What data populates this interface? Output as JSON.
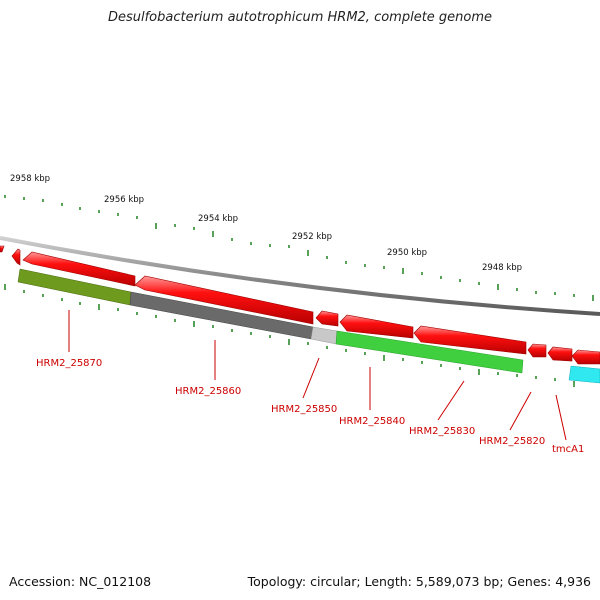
{
  "title": "Desulfobacterium autotrophicum HRM2, complete genome",
  "footer": {
    "accession": "Accession: NC_012108",
    "summary": "Topology: circular; Length: 5,589,073 bp; Genes: 4,936"
  },
  "ticks": [
    {
      "label": "2958 kbp"
    },
    {
      "label": "2956 kbp"
    },
    {
      "label": "2954 kbp"
    },
    {
      "label": "2952 kbp"
    },
    {
      "label": "2950 kbp"
    },
    {
      "label": "2948 kbp"
    }
  ],
  "gene_labels": [
    "HRM2_25870",
    "HRM2_25860",
    "HRM2_25850",
    "HRM2_25840",
    "HRM2_25830",
    "HRM2_25820",
    "tmcA1"
  ],
  "colors": {
    "cds": "#ff0000",
    "label": "#cc0000",
    "tick": "#2e8b2e",
    "backbone": "#8a8a8a",
    "gene_olive": "#6e9a1e",
    "gene_dark_gray": "#6a6a6a",
    "gene_light_gray": "#c8c8c8",
    "gene_green": "#3fcf3f",
    "gene_cyan": "#2fe8f0"
  }
}
